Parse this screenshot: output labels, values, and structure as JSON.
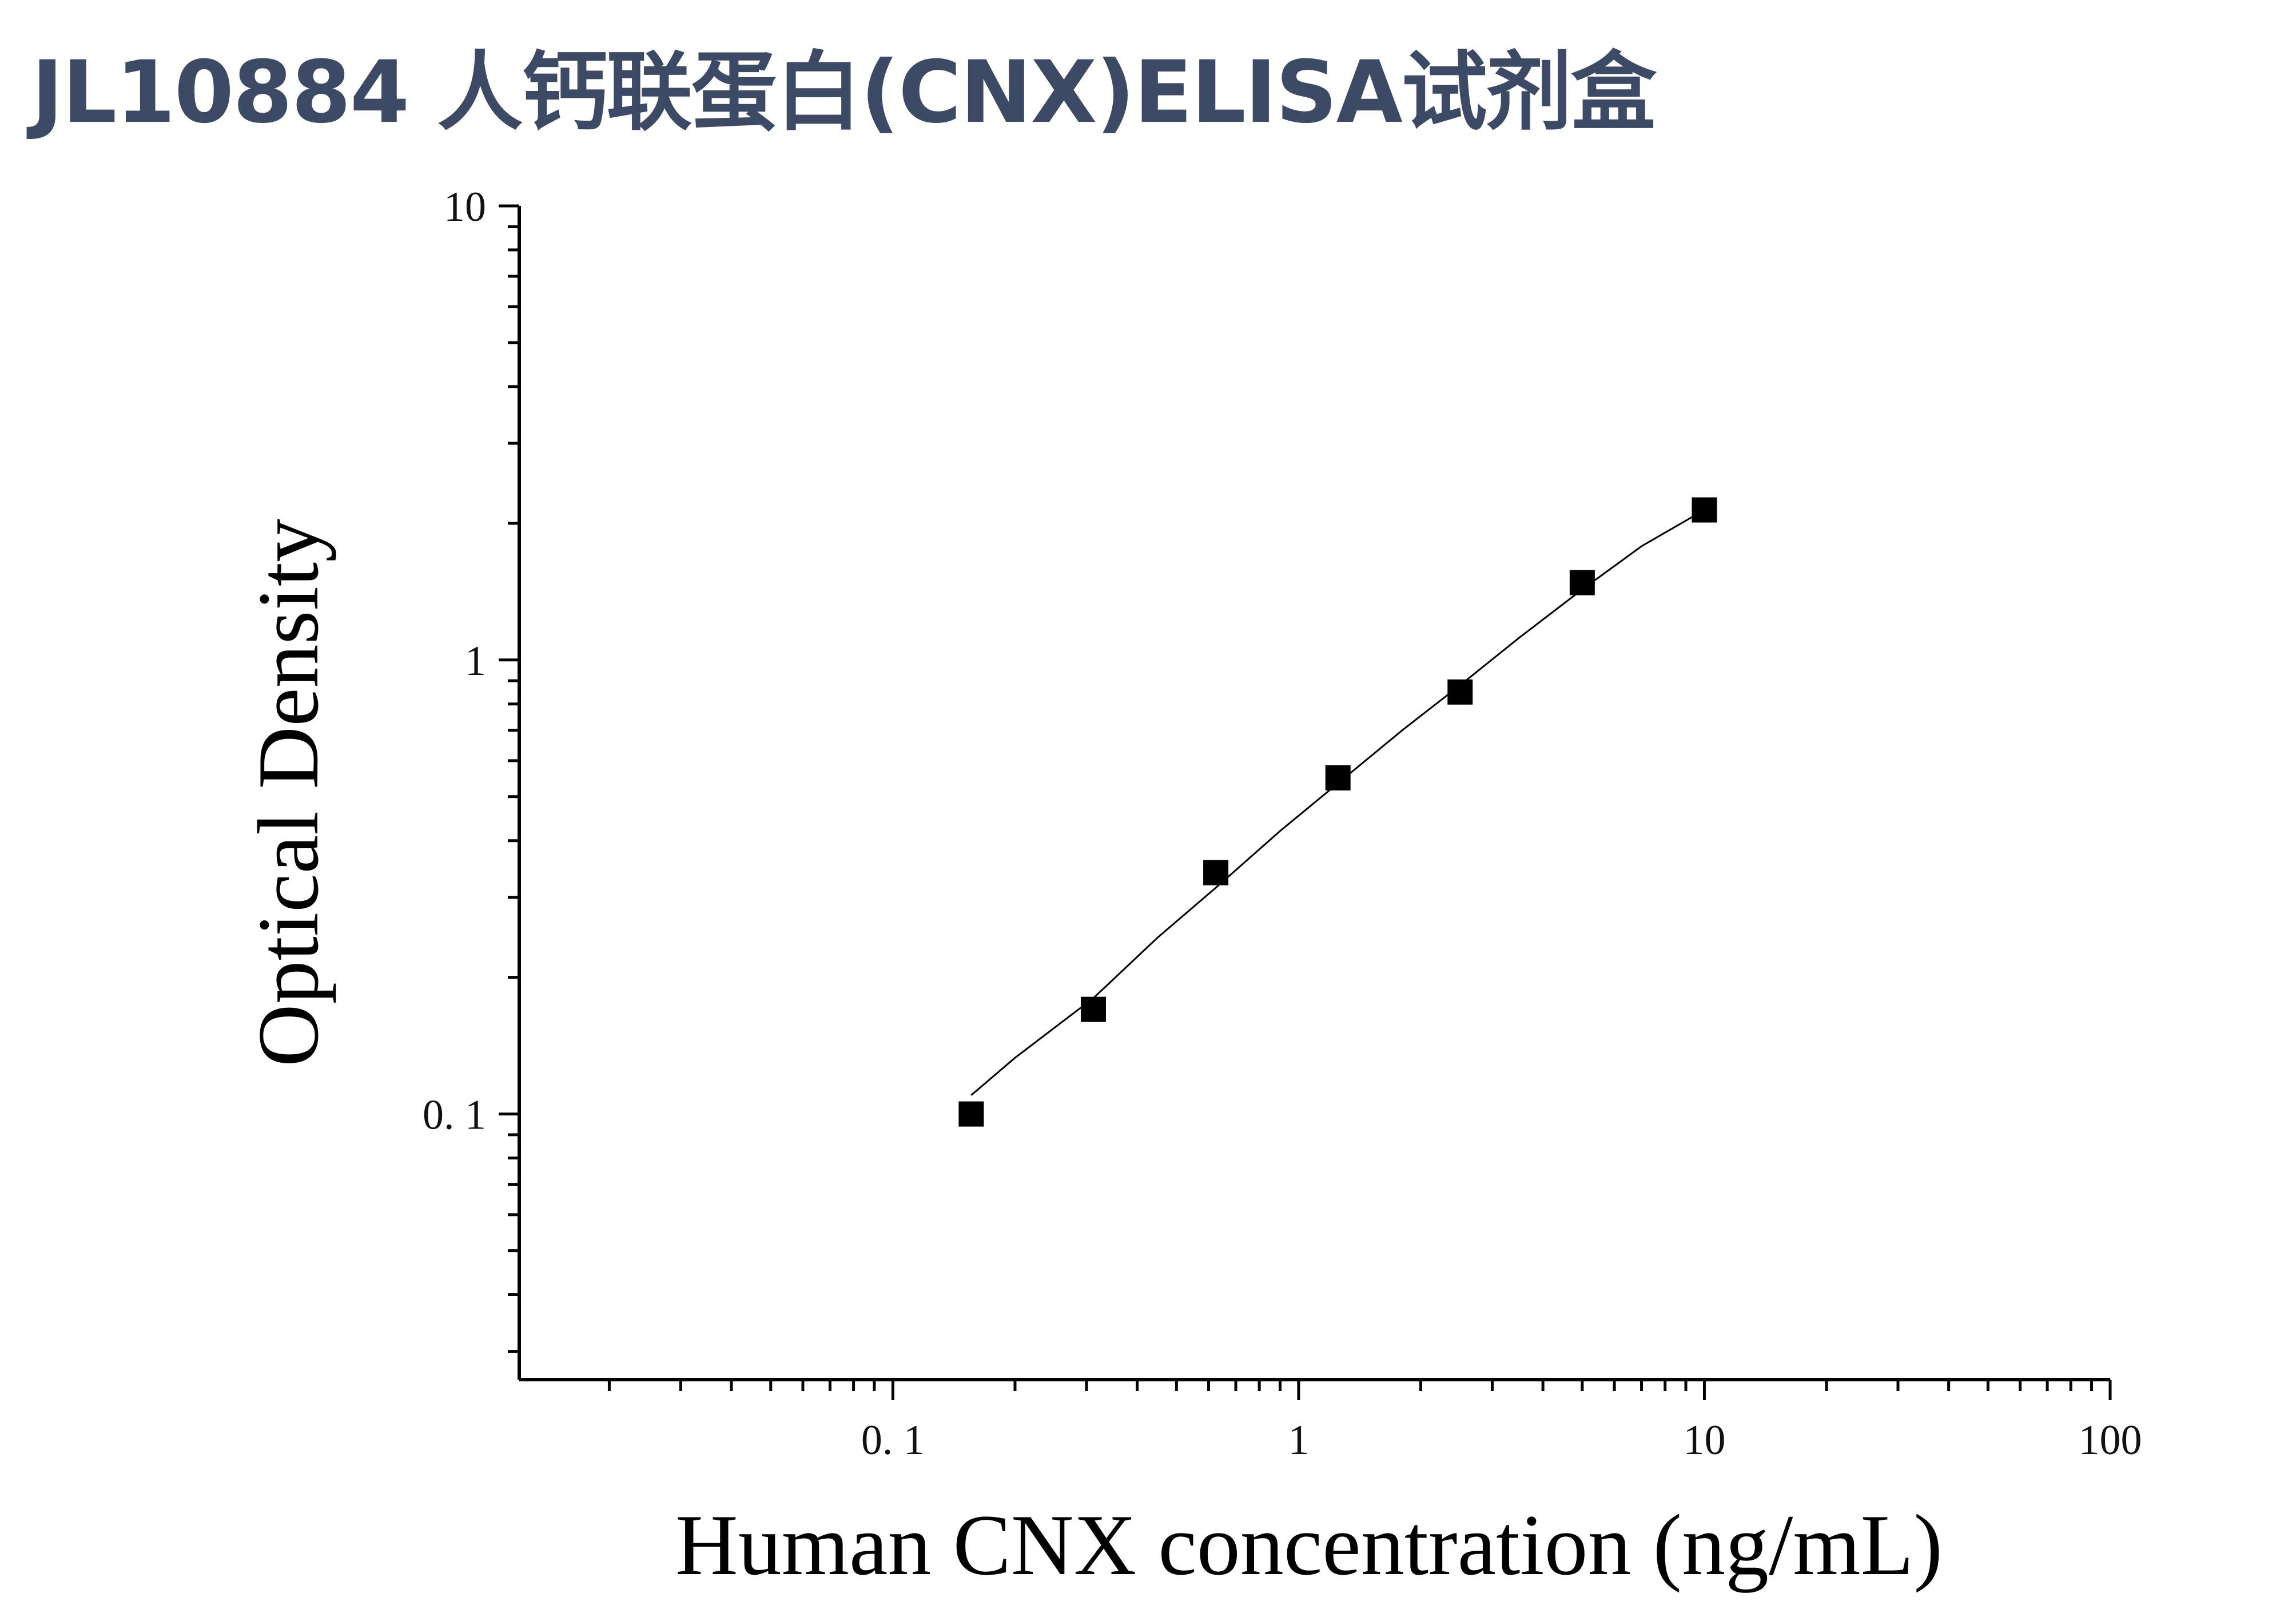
{
  "title": "JL10884 人钙联蛋白(CNX)ELISA试剂盒",
  "chart_data": {
    "type": "scatter",
    "title": "JL10884 人钙联蛋白(CNX)ELISA试剂盒",
    "xlabel": "Human CNX concentration (ng/mL)",
    "ylabel": "Optical Density",
    "xscale": "log",
    "yscale": "log",
    "xlim": [
      0.012,
      100
    ],
    "ylim": [
      0.026,
      10
    ],
    "x_ticks": [
      {
        "value": 0.1,
        "label": "0. 1"
      },
      {
        "value": 1,
        "label": "1"
      },
      {
        "value": 10,
        "label": "10"
      },
      {
        "value": 100,
        "label": "100"
      }
    ],
    "y_ticks": [
      {
        "value": 0.1,
        "label": "0. 1"
      },
      {
        "value": 1,
        "label": "1"
      },
      {
        "value": 10,
        "label": "10"
      }
    ],
    "grid": false,
    "legend": "none",
    "series": [
      {
        "marker": "square",
        "color": "#000000",
        "x": [
          0.156,
          0.312,
          0.625,
          1.25,
          2.5,
          5,
          10
        ],
        "y": [
          0.1,
          0.17,
          0.34,
          0.55,
          0.85,
          1.48,
          2.14
        ]
      }
    ],
    "fit_curve": {
      "color": "#000000",
      "x": [
        0.156,
        0.2,
        0.312,
        0.45,
        0.625,
        0.9,
        1.25,
        1.8,
        2.5,
        3.5,
        5,
        7,
        10
      ],
      "y": [
        0.11,
        0.133,
        0.18,
        0.245,
        0.315,
        0.42,
        0.535,
        0.7,
        0.88,
        1.12,
        1.43,
        1.78,
        2.14
      ]
    }
  }
}
